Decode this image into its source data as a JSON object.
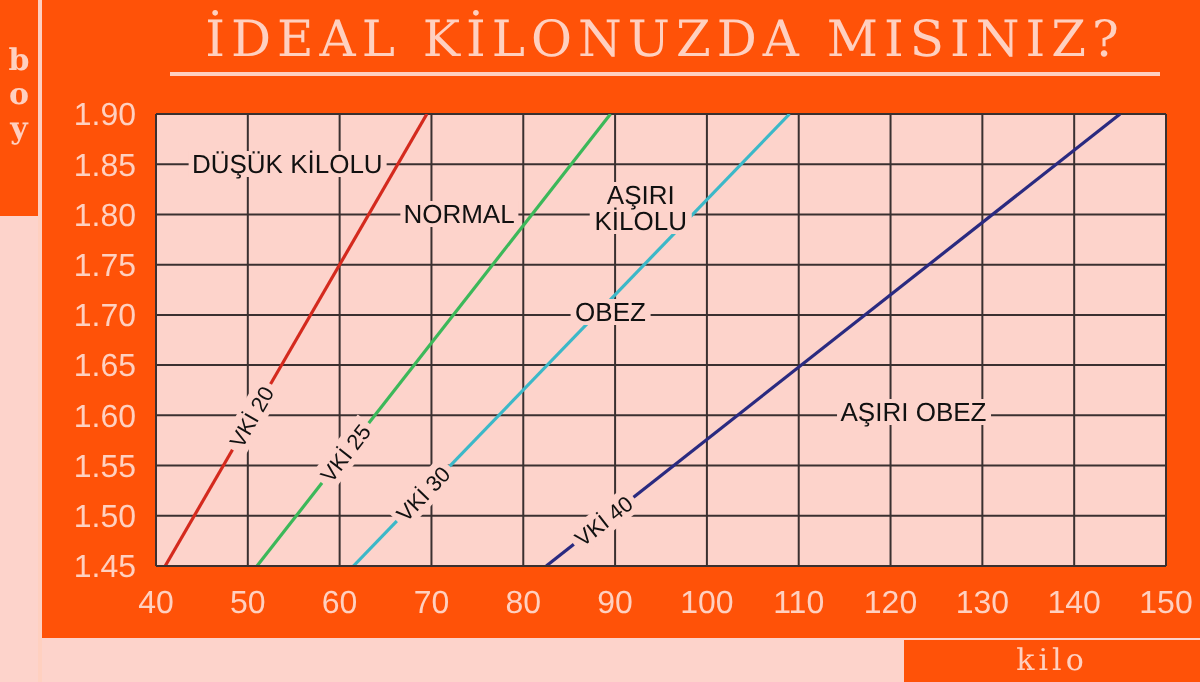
{
  "chart_data": {
    "type": "line",
    "title": "İDEAL KİLONUZDA MISINIZ?",
    "xlabel": "kilo",
    "ylabel": "boy",
    "series": [
      {
        "name": "VKİ 20",
        "color": "#d42a1e",
        "x": [
          41,
          69.5
        ],
        "values": [
          1.45,
          1.9
        ]
      },
      {
        "name": "VKİ 25",
        "color": "#3cb85a",
        "x": [
          51,
          89.5
        ],
        "values": [
          1.45,
          1.9
        ]
      },
      {
        "name": "VKİ 30",
        "color": "#3cb8c8",
        "x": [
          61.5,
          109
        ],
        "values": [
          1.45,
          1.9
        ]
      },
      {
        "name": "VKİ 40",
        "color": "#2a2a80",
        "x": [
          82.5,
          145
        ],
        "values": [
          1.45,
          1.9
        ]
      }
    ],
    "xlim": [
      40,
      150
    ],
    "xticks": [
      40,
      50,
      60,
      70,
      80,
      90,
      100,
      110,
      120,
      130,
      140,
      150
    ],
    "ylim": [
      1.45,
      1.9
    ],
    "yticks": [
      {
        "value": 1.45,
        "label": "1.45"
      },
      {
        "value": 1.5,
        "label": "1.50"
      },
      {
        "value": 1.55,
        "label": "1.55"
      },
      {
        "value": 1.6,
        "label": "1.60"
      },
      {
        "value": 1.65,
        "label": "1.65"
      },
      {
        "value": 1.7,
        "label": "1.70"
      },
      {
        "value": 1.75,
        "label": "1.75"
      },
      {
        "value": 1.8,
        "label": "1.80"
      },
      {
        "value": 1.85,
        "label": "1.85"
      },
      {
        "value": 1.9,
        "label": "1.90"
      }
    ],
    "annotations": [
      "DÜŞÜK KİLOLU",
      "NORMAL",
      "AŞIRI\nKİLOLU",
      "OBEZ",
      "AŞIRI OBEZ"
    ],
    "grid": true,
    "legend": false,
    "marker": "none",
    "line_style": "solid"
  }
}
